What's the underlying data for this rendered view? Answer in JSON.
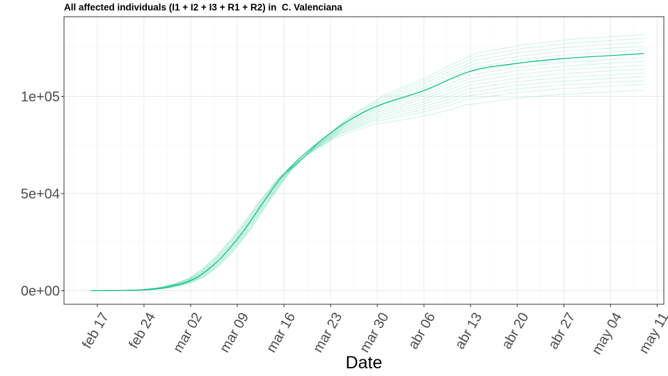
{
  "chart_data": {
    "type": "line",
    "title": "All affected individuals (I1 + I2 + I3 + R1 + R2) in  C. Valenciana",
    "xlabel": "Date",
    "ylabel": "",
    "x_ticks": [
      "feb 17",
      "feb 24",
      "mar 02",
      "mar 09",
      "mar 16",
      "mar 23",
      "mar 30",
      "abr 06",
      "abr 13",
      "abr 20",
      "abr 27",
      "may 04",
      "may 11"
    ],
    "y_ticks": [
      "0e+00",
      "5e+04",
      "1e+05"
    ],
    "y_tick_values": [
      0,
      50000,
      100000
    ],
    "xlim": [
      "2020-02-12",
      "2020-05-12"
    ],
    "ylim": [
      -7000,
      141000
    ],
    "x_start": "2020-02-16",
    "x_end": "2020-05-09",
    "grid": true,
    "legend": "none",
    "main_series": {
      "x": [
        "2020-02-16",
        "2020-02-20",
        "2020-02-24",
        "2020-02-27",
        "2020-03-01",
        "2020-03-03",
        "2020-03-05",
        "2020-03-07",
        "2020-03-10",
        "2020-03-13",
        "2020-03-16",
        "2020-03-20",
        "2020-03-25",
        "2020-03-30",
        "2020-04-06",
        "2020-04-13",
        "2020-04-20",
        "2020-04-27",
        "2020-05-04",
        "2020-05-09"
      ],
      "y": [
        0,
        100,
        400,
        1500,
        4000,
        7000,
        12000,
        18500,
        31000,
        46000,
        60000,
        73000,
        86000,
        95000,
        103000,
        113000,
        117000,
        119500,
        121000,
        122000
      ]
    },
    "band_final_values": [
      103000,
      106000,
      108000,
      110000,
      112000,
      114000,
      116000,
      118000,
      120000,
      122000,
      124000,
      126000,
      128000,
      130000,
      132000
    ],
    "colors": {
      "main": "#00BF7D",
      "band": "#00BF7D",
      "panel_border": "#333333",
      "grid_major": "#ebebeb",
      "grid_minor": "#f5f5f5"
    }
  }
}
